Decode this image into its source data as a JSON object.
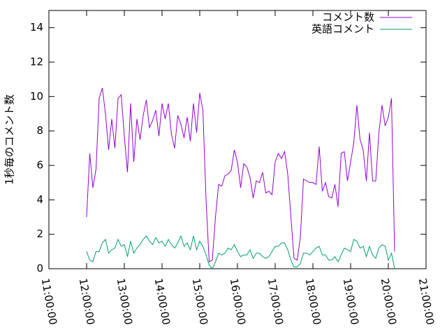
{
  "chart_data": {
    "type": "line",
    "y_label": "1秒毎のコメント数",
    "x": [
      "12:00:00",
      "12:05:00",
      "12:10:00",
      "12:15:00",
      "12:20:00",
      "12:25:00",
      "12:30:00",
      "12:35:00",
      "12:40:00",
      "12:45:00",
      "12:50:00",
      "12:55:00",
      "13:00:00",
      "13:05:00",
      "13:10:00",
      "13:15:00",
      "13:20:00",
      "13:25:00",
      "13:30:00",
      "13:35:00",
      "13:40:00",
      "13:45:00",
      "13:50:00",
      "13:55:00",
      "14:00:00",
      "14:05:00",
      "14:10:00",
      "14:15:00",
      "14:20:00",
      "14:25:00",
      "14:30:00",
      "14:35:00",
      "14:40:00",
      "14:45:00",
      "14:50:00",
      "14:55:00",
      "15:00:00",
      "15:05:00",
      "15:10:00",
      "15:15:00",
      "15:20:00",
      "15:25:00",
      "15:30:00",
      "15:35:00",
      "15:40:00",
      "15:45:00",
      "15:50:00",
      "15:55:00",
      "16:00:00",
      "16:05:00",
      "16:10:00",
      "16:15:00",
      "16:20:00",
      "16:25:00",
      "16:30:00",
      "16:35:00",
      "16:40:00",
      "16:45:00",
      "16:50:00",
      "16:55:00",
      "17:00:00",
      "17:05:00",
      "17:10:00",
      "17:15:00",
      "17:20:00",
      "17:25:00",
      "17:30:00",
      "17:35:00",
      "17:40:00",
      "17:45:00",
      "17:50:00",
      "17:55:00",
      "18:00:00",
      "18:05:00",
      "18:10:00",
      "18:15:00",
      "18:20:00",
      "18:25:00",
      "18:30:00",
      "18:35:00",
      "18:40:00",
      "18:45:00",
      "18:50:00",
      "18:55:00",
      "19:00:00",
      "19:05:00",
      "19:10:00",
      "19:15:00",
      "19:20:00",
      "19:25:00",
      "19:30:00",
      "19:35:00",
      "19:40:00",
      "19:45:00",
      "19:50:00",
      "19:55:00",
      "20:00:00",
      "20:05:00",
      "20:10:00"
    ],
    "series": [
      {
        "name": "コメント数",
        "color": "#9400d3",
        "values": [
          3.0,
          6.7,
          4.7,
          5.8,
          9.9,
          10.5,
          9.0,
          6.9,
          8.7,
          7.0,
          9.9,
          10.1,
          7.7,
          5.6,
          9.6,
          6.2,
          8.7,
          7.5,
          8.9,
          9.8,
          8.2,
          8.6,
          9.2,
          7.7,
          9.6,
          8.7,
          9.6,
          7.8,
          7.0,
          8.9,
          8.4,
          7.6,
          8.8,
          7.4,
          9.6,
          7.9,
          10.2,
          9.2,
          4.0,
          0.4,
          0.5,
          3.0,
          4.9,
          4.8,
          5.4,
          5.5,
          5.7,
          6.9,
          6.2,
          4.7,
          6.1,
          5.9,
          5.3,
          4.1,
          5.1,
          5.0,
          5.6,
          4.4,
          4.5,
          4.3,
          6.2,
          6.7,
          6.4,
          6.8,
          5.5,
          3.0,
          0.6,
          0.5,
          1.8,
          5.2,
          5.1,
          5.0,
          5.0,
          4.9,
          7.1,
          4.5,
          5.0,
          4.2,
          4.1,
          4.9,
          3.6,
          6.7,
          6.8,
          5.1,
          6.2,
          7.3,
          9.5,
          7.5,
          6.9,
          5.1,
          7.9,
          5.1,
          5.1,
          7.9,
          9.5,
          8.3,
          8.8,
          9.9,
          1.0
        ]
      },
      {
        "name": "英語コメント",
        "color": "#009e73",
        "values": [
          1.0,
          0.5,
          0.4,
          1.0,
          1.0,
          1.5,
          1.7,
          0.9,
          1.1,
          1.2,
          1.7,
          1.3,
          1.4,
          0.7,
          1.6,
          0.9,
          1.2,
          1.4,
          1.7,
          1.9,
          1.6,
          1.4,
          1.8,
          1.5,
          1.6,
          1.3,
          1.7,
          1.4,
          1.2,
          1.5,
          1.9,
          1.3,
          1.5,
          1.1,
          1.9,
          1.1,
          1.6,
          1.3,
          0.8,
          0.2,
          0.0,
          0.4,
          0.9,
          0.8,
          0.9,
          1.2,
          1.1,
          1.4,
          1.0,
          0.7,
          0.8,
          0.8,
          1.1,
          0.6,
          0.9,
          0.9,
          0.7,
          0.6,
          0.7,
          1.0,
          1.3,
          1.3,
          1.5,
          1.5,
          1.1,
          0.5,
          0.1,
          0.1,
          0.3,
          0.9,
          0.9,
          0.8,
          1.0,
          1.2,
          1.3,
          0.8,
          0.8,
          0.5,
          0.5,
          0.7,
          0.4,
          0.8,
          1.2,
          1.1,
          1.0,
          1.7,
          1.6,
          1.2,
          1.3,
          0.7,
          1.3,
          0.8,
          0.6,
          1.2,
          1.4,
          1.3,
          0.5,
          0.9,
          0.0
        ]
      }
    ],
    "xlim": [
      "11:00:00",
      "21:00:00"
    ],
    "xticks": [
      "11:00:00",
      "12:00:00",
      "13:00:00",
      "14:00:00",
      "15:00:00",
      "16:00:00",
      "17:00:00",
      "18:00:00",
      "19:00:00",
      "20:00:00",
      "21:00:00"
    ],
    "ylim": [
      0,
      15
    ],
    "yticks": [
      0,
      2,
      4,
      6,
      8,
      10,
      12,
      14
    ],
    "legend": "top-right"
  }
}
